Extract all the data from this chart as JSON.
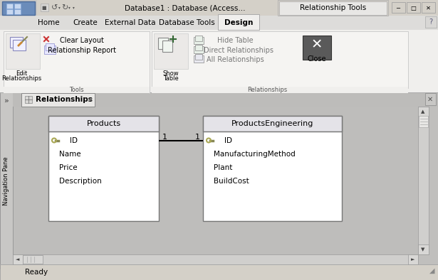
{
  "title_bar_text": "Database1 : Database (Access...",
  "ribbon_tools_text": "Relationship Tools",
  "menu_tabs": [
    "Home",
    "Create",
    "External Data",
    "Database Tools",
    "Design"
  ],
  "tools_group_label": "Tools",
  "relationships_group_label": "Relationships",
  "nav_pane_label": "Navigation Pane",
  "tab_label": "Relationships",
  "table1_title": "Products",
  "table1_fields": [
    "ID",
    "Name",
    "Price",
    "Description"
  ],
  "table2_title": "ProductsEngineering",
  "table2_fields": [
    "ID",
    "ManufacturingMethod",
    "Plant",
    "BuildCost"
  ],
  "rel_label": "1",
  "status_bar_text": "Ready",
  "titlebar_bg": "#d4d0c8",
  "ribbon_bg": "#f0efed",
  "ribbon_group_bg": "#f5f4f2",
  "workspace_bg": "#c0bfbd",
  "tabbar_bg": "#bdbcba",
  "table_bg": "#ffffff",
  "table_header_bg": "#e8e8f0",
  "nav_bg": "#c8c7c5",
  "statusbar_bg": "#d4d0c8",
  "scrollbar_bg": "#d0cfcd"
}
